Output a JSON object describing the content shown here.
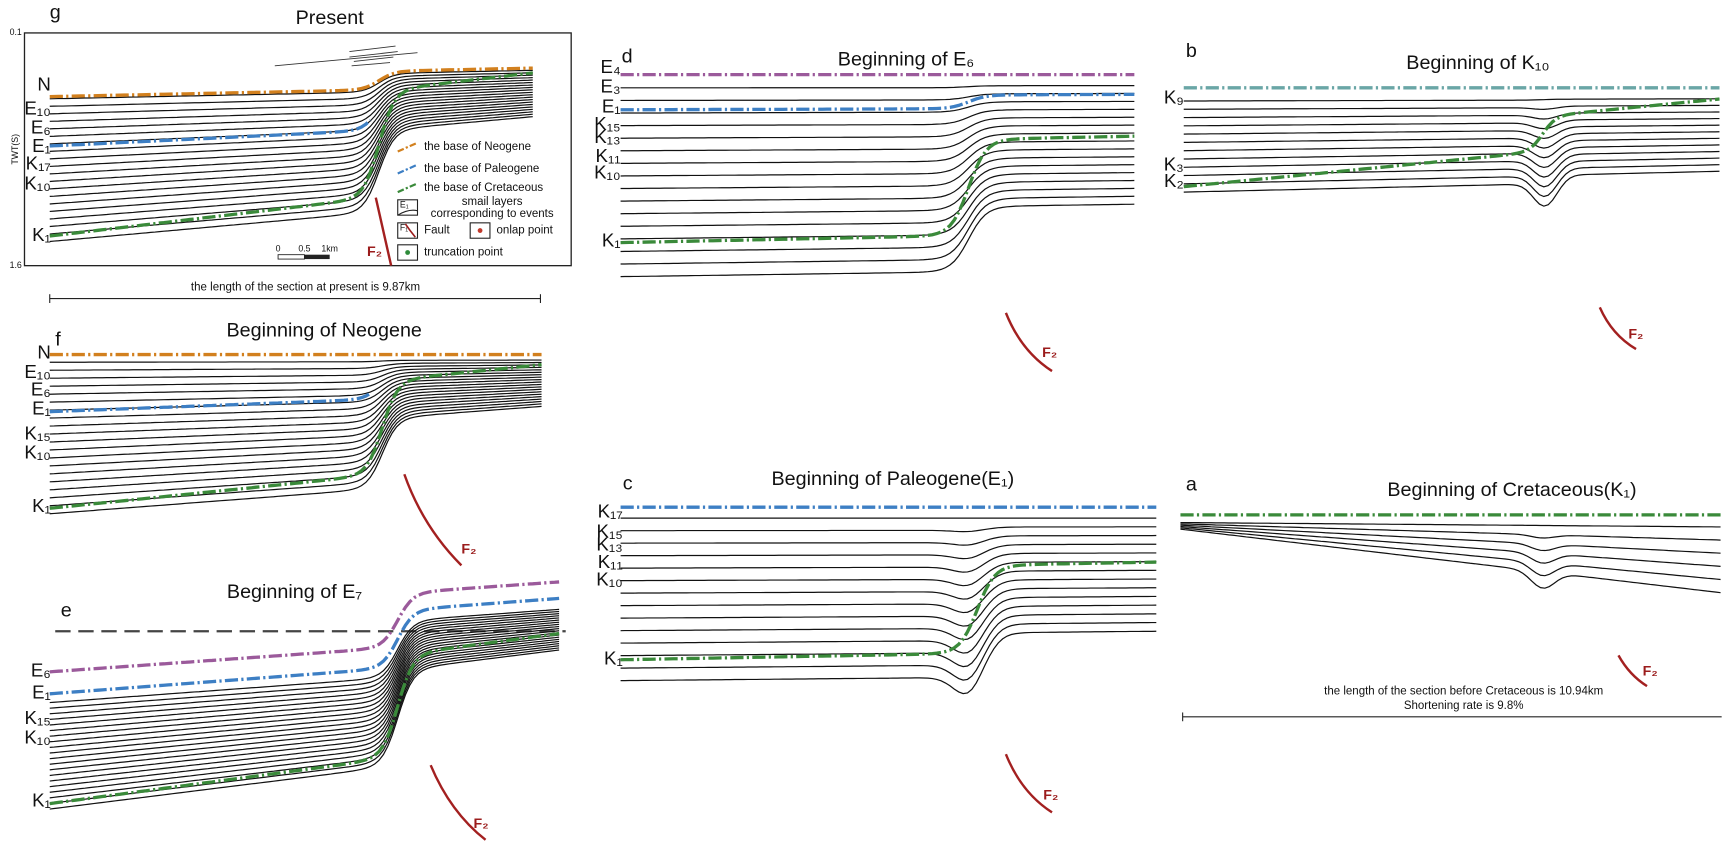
{
  "panels": [
    {
      "letter": "g",
      "title": "Present",
      "horizons": [
        "N",
        "E₁₀",
        "E₆",
        "E₁",
        "K₁₇",
        "K₁₀",
        "K₁"
      ],
      "fault": "F₂",
      "axis_label": "TWT(S)",
      "axis_range": [
        "0.1",
        "1.6"
      ],
      "legend": [
        {
          "text": "the base of Neogene"
        },
        {
          "text": "the base of Paleogene"
        },
        {
          "text": "the base of Cretaceous"
        },
        {
          "icon": "E₁",
          "text": [
            "smail layers",
            "corresponding to events"
          ]
        },
        {
          "icon": "F₁",
          "text": "Fault"
        },
        {
          "text": "onlap point"
        },
        {
          "text": "truncation point"
        }
      ],
      "scale": [
        "0",
        "0.5",
        "1km"
      ],
      "length_note": "the length of the section at present is 9.87km"
    },
    {
      "letter": "f",
      "title": "Beginning of Neogene",
      "horizons": [
        "N",
        "E₁₀",
        "E₆",
        "E₁",
        "K₁₅",
        "K₁₀",
        "K₁"
      ],
      "fault": "F₂"
    },
    {
      "letter": "e",
      "title": "Beginning of E₇",
      "horizons": [
        "E₆",
        "E₁",
        "K₁₅",
        "K₁₀",
        "K₁"
      ],
      "fault": "F₂"
    },
    {
      "letter": "d",
      "title": "Beginning of E₆",
      "horizons": [
        "E₄",
        "E₃",
        "E₁",
        "K₁₅",
        "K₁₃",
        "K₁₁",
        "K₁₀",
        "K₁"
      ],
      "fault": "F₂"
    },
    {
      "letter": "c",
      "title": "Beginning of Paleogene(E₁)",
      "horizons": [
        "K₁₇",
        "K₁₅",
        "K₁₃",
        "K₁₁",
        "K₁₀",
        "K₁"
      ],
      "fault": "F₂"
    },
    {
      "letter": "b",
      "title": "Beginning of K₁₀",
      "horizons": [
        "K₉",
        "K₃",
        "K₂"
      ],
      "fault": "F₂"
    },
    {
      "letter": "a",
      "title": "Beginning of Cretaceous(K₁)",
      "fault": "F₂",
      "length_note": "the length of the section before Cretaceous  is 10.94km",
      "shortening_note": "Shortening rate is 9.8%"
    }
  ]
}
